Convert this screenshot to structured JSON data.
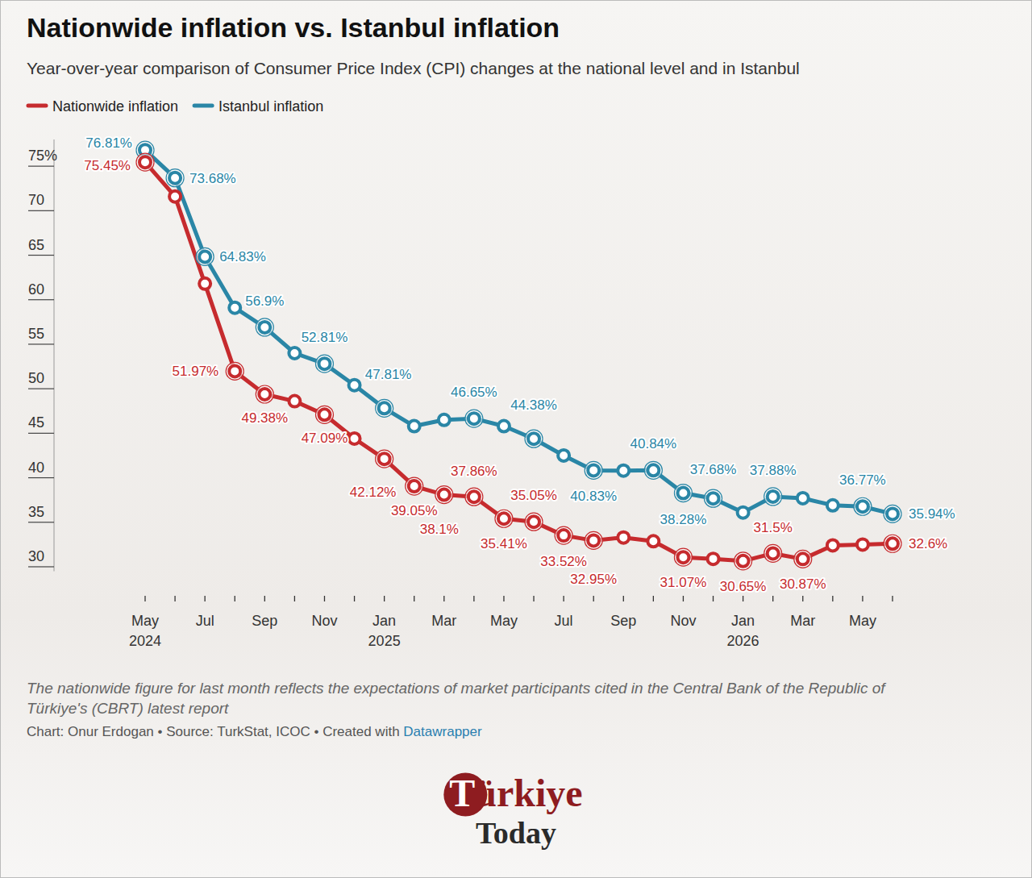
{
  "chart_data": {
    "type": "line",
    "title": "Nationwide inflation vs. Istanbul inflation",
    "subtitle": "Year-over-year comparison of Consumer Price Index (CPI) changes at the national level and in Istanbul",
    "categories": [
      "May 2024",
      null,
      "Jul",
      null,
      "Sep",
      null,
      "Nov",
      null,
      "Jan 2025",
      null,
      "Mar",
      null,
      "May",
      null,
      "Jul",
      null,
      "Sep",
      null,
      "Nov",
      null,
      "Jan 2026",
      null,
      "Mar",
      null,
      "May",
      null
    ],
    "series": [
      {
        "name": "Nationwide inflation",
        "color": "#c62b2e",
        "marker": "circle",
        "line_style": "solid",
        "values": [
          75.45,
          71.6,
          61.8,
          51.97,
          49.38,
          48.6,
          47.09,
          44.4,
          42.12,
          39.05,
          38.1,
          37.86,
          35.41,
          35.05,
          33.52,
          32.95,
          33.29,
          32.87,
          31.07,
          30.89,
          30.65,
          31.5,
          30.87,
          32.4,
          32.5,
          32.6
        ],
        "value_labels": [
          "75.45%",
          null,
          null,
          "51.97%",
          "49.38%",
          null,
          "47.09%",
          null,
          "42.12%",
          "39.05%",
          "38.1%",
          "37.86%",
          "35.41%",
          "35.05%",
          "33.52%",
          "32.95%",
          null,
          null,
          "31.07%",
          null,
          "30.65%",
          "31.5%",
          "30.87%",
          null,
          null,
          "32.6%"
        ]
      },
      {
        "name": "Istanbul inflation",
        "color": "#2a86a6",
        "marker": "circle",
        "line_style": "solid",
        "values": [
          76.81,
          73.68,
          64.83,
          59.1,
          56.9,
          54.0,
          52.81,
          50.4,
          47.81,
          45.8,
          46.5,
          46.65,
          45.8,
          44.38,
          42.5,
          40.83,
          40.8,
          40.84,
          38.28,
          37.68,
          36.1,
          37.88,
          37.7,
          36.9,
          36.77,
          35.94
        ],
        "value_labels": [
          "76.81%",
          "73.68%",
          "64.83%",
          null,
          "56.9%",
          null,
          "52.81%",
          null,
          "47.81%",
          null,
          null,
          "46.65%",
          null,
          "44.38%",
          null,
          "40.83%",
          null,
          "40.84%",
          "38.28%",
          "37.68%",
          null,
          "37.88%",
          null,
          null,
          "36.77%",
          "35.94%"
        ]
      }
    ],
    "ylim": [
      29.5,
      78
    ],
    "yticks": [
      30,
      35,
      40,
      45,
      50,
      55,
      60,
      65,
      70,
      {
        "value": 75,
        "label": "75%"
      }
    ],
    "grid": false,
    "legend": "top-left",
    "note": "The nationwide figure for last month reflects the expectations of market participants cited in the Central Bank of the Republic of Türkiye's (CBRT) latest report",
    "source": "Chart: Onur Erdogan • Source: TurkStat, ICOC • Created with ",
    "credit": "Datawrapper",
    "logo": [
      "Türkiye",
      "Today"
    ]
  }
}
